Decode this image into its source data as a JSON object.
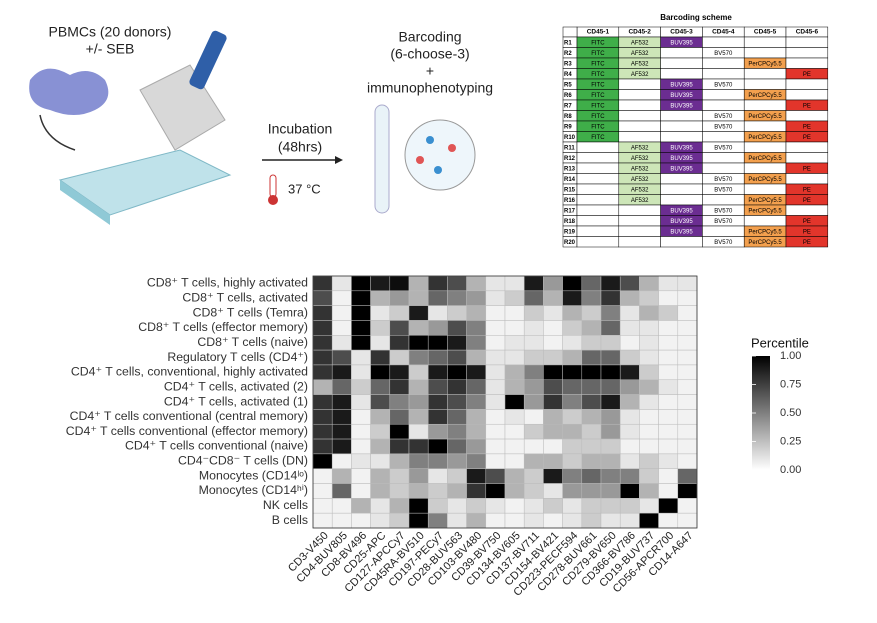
{
  "illustration": {
    "sample": "PBMCs (20 donors)",
    "treatment": "+/- SEB",
    "incubation": "Incubation",
    "duration": "(48hrs)",
    "temperature": "37 °C",
    "step": "Barcoding",
    "step_detail": "(6-choose-3)",
    "plus": "+",
    "step2": "immunophenotyping"
  },
  "table": {
    "title": "Barcoding scheme",
    "columns": [
      "CD45-1",
      "CD45-2",
      "CD45-3",
      "CD45-4",
      "CD45-5",
      "CD45-6"
    ],
    "cell_colors": {
      "FITC": "#3fae49",
      "AF532": "#cde6b8",
      "BUV395": "#6b2d91",
      "BV570": "#ffffff",
      "PerCPCy5.5": "#f3a04e",
      "PE": "#e2352b"
    },
    "rows": [
      [
        "R1",
        "FITC",
        "AF532",
        "BUV395",
        null,
        null,
        null
      ],
      [
        "R2",
        "FITC",
        "AF532",
        null,
        "BV570",
        null,
        null
      ],
      [
        "R3",
        "FITC",
        "AF532",
        null,
        null,
        "PerCPCy5.5",
        null
      ],
      [
        "R4",
        "FITC",
        "AF532",
        null,
        null,
        null,
        "PE"
      ],
      [
        "R5",
        "FITC",
        null,
        "BUV395",
        "BV570",
        null,
        null
      ],
      [
        "R6",
        "FITC",
        null,
        "BUV395",
        null,
        "PerCPCy5.5",
        null
      ],
      [
        "R7",
        "FITC",
        null,
        "BUV395",
        null,
        null,
        "PE"
      ],
      [
        "R8",
        "FITC",
        null,
        null,
        "BV570",
        "PerCPCy5.5",
        null
      ],
      [
        "R9",
        "FITC",
        null,
        null,
        "BV570",
        null,
        "PE"
      ],
      [
        "R10",
        "FITC",
        null,
        null,
        null,
        "PerCPCy5.5",
        "PE"
      ],
      [
        "R11",
        null,
        "AF532",
        "BUV395",
        "BV570",
        null,
        null
      ],
      [
        "R12",
        null,
        "AF532",
        "BUV395",
        null,
        "PerCPCy5.5",
        null
      ],
      [
        "R13",
        null,
        "AF532",
        "BUV395",
        null,
        null,
        "PE"
      ],
      [
        "R14",
        null,
        "AF532",
        null,
        "BV570",
        "PerCPCy5.5",
        null
      ],
      [
        "R15",
        null,
        "AF532",
        null,
        "BV570",
        null,
        "PE"
      ],
      [
        "R16",
        null,
        "AF532",
        null,
        null,
        "PerCPCy5.5",
        "PE"
      ],
      [
        "R17",
        null,
        null,
        "BUV395",
        "BV570",
        "PerCPCy5.5",
        null
      ],
      [
        "R18",
        null,
        null,
        "BUV395",
        "BV570",
        null,
        "PE"
      ],
      [
        "R19",
        null,
        null,
        "BUV395",
        null,
        "PerCPCy5.5",
        "PE"
      ],
      [
        "R20",
        null,
        null,
        null,
        "BV570",
        "PerCPCy5.5",
        "PE"
      ]
    ]
  },
  "chart_data": {
    "type": "heatmap",
    "rows": [
      "CD8⁺ T cells, highly activated",
      "CD8⁺ T cells, activated",
      "CD8⁺ T cells (Temra)",
      "CD8⁺ T cells (effector memory)",
      "CD8⁺ T cells (naive)",
      "Regulatory T cells (CD4⁺)",
      "CD4⁺ T cells, conventional, highly activated",
      "CD4⁺ T cells, activated (2)",
      "CD4⁺ T cells, activated (1)",
      "CD4⁺ T cells conventional (central memory)",
      "CD4⁺ T cells conventional (effector memory)",
      "CD4⁺ T cells conventional (naive)",
      "CD4⁻CD8⁻ T cells (DN)",
      "Monocytes (CD14ˡᵒ)",
      "Monocytes (CD14ʰⁱ)",
      "NK cells",
      "B cells"
    ],
    "categories": [
      "CD3-V450",
      "CD4-BUV805",
      "CD8-BV496",
      "CD25-APC",
      "CD127-APCCy7",
      "CD45RA-BV510",
      "CD197-PECy7",
      "CD28-BUV563",
      "CD103-BV480",
      "CD39-BV750",
      "CD134-BV605",
      "CD137-BV711",
      "CD154-BV421",
      "CD223-PECF594",
      "CD278-BUV661",
      "CD279-BV650",
      "CD366-BV786",
      "CD19-BUV737",
      "CD56-APCR700",
      "CD14-A647"
    ],
    "values": [
      [
        0.8,
        0.1,
        1,
        0.9,
        0.95,
        0.3,
        0.8,
        0.7,
        0.3,
        0.1,
        0.1,
        0.9,
        0.4,
        1,
        0.6,
        0.9,
        0.7,
        0.3,
        0.1,
        0.1
      ],
      [
        0.7,
        0.05,
        1,
        0.3,
        0.4,
        0.3,
        0.6,
        0.5,
        0.4,
        0.1,
        0.2,
        0.6,
        0.3,
        0.9,
        0.5,
        0.8,
        0.3,
        0.2,
        0.05,
        0.05
      ],
      [
        0.8,
        0.05,
        1,
        0.1,
        0.2,
        0.9,
        0.1,
        0.2,
        0.3,
        0.05,
        0.05,
        0.2,
        0.1,
        0.3,
        0.2,
        0.5,
        0.1,
        0.3,
        0.2,
        0.05
      ],
      [
        0.8,
        0.05,
        1,
        0.2,
        0.7,
        0.3,
        0.4,
        0.7,
        0.5,
        0.05,
        0.05,
        0.1,
        0.05,
        0.2,
        0.3,
        0.6,
        0.1,
        0.1,
        0.05,
        0.05
      ],
      [
        0.8,
        0.1,
        1,
        0.1,
        0.8,
        1,
        1,
        0.9,
        0.5,
        0.05,
        0.1,
        0.1,
        0.05,
        0.1,
        0.2,
        0.2,
        0.05,
        0.1,
        0.05,
        0.05
      ],
      [
        0.8,
        0.7,
        0.1,
        0.8,
        0.2,
        0.5,
        0.6,
        0.7,
        0.3,
        0.1,
        0.1,
        0.2,
        0.2,
        0.3,
        0.6,
        0.6,
        0.2,
        0.1,
        0.05,
        0.05
      ],
      [
        0.8,
        0.9,
        0.1,
        1,
        0.9,
        0.2,
        0.9,
        1,
        0.9,
        0.1,
        0.3,
        0.5,
        1,
        1,
        1,
        1,
        0.9,
        0.2,
        0.05,
        0.05
      ],
      [
        0.3,
        0.6,
        0.2,
        0.6,
        0.8,
        0.3,
        0.7,
        0.8,
        0.6,
        0.1,
        0.3,
        0.4,
        0.7,
        0.6,
        0.6,
        0.6,
        0.4,
        0.3,
        0.1,
        0.05
      ],
      [
        0.8,
        0.9,
        0.1,
        0.7,
        0.5,
        0.4,
        0.8,
        0.7,
        0.5,
        0.1,
        1,
        0.4,
        0.8,
        0.5,
        0.7,
        0.9,
        0.3,
        0.1,
        0.05,
        0.05
      ],
      [
        0.8,
        0.9,
        0.05,
        0.3,
        0.6,
        0.3,
        0.8,
        0.6,
        0.3,
        0.05,
        0.1,
        0.05,
        0.3,
        0.2,
        0.3,
        0.4,
        0.1,
        0.05,
        0.05,
        0.05
      ],
      [
        0.8,
        0.9,
        0.05,
        0.2,
        1,
        0.1,
        0.4,
        0.5,
        0.3,
        0.05,
        0.05,
        0.2,
        0.3,
        0.3,
        0.2,
        0.4,
        0.1,
        0.05,
        0.05,
        0.05
      ],
      [
        0.8,
        0.9,
        0.05,
        0.3,
        0.8,
        0.8,
        1,
        0.6,
        0.4,
        0.05,
        0.05,
        0.05,
        0.05,
        0.2,
        0.2,
        0.2,
        0.05,
        0.05,
        0.05,
        0.05
      ],
      [
        1,
        0.05,
        0.1,
        0.1,
        0.3,
        0.5,
        0.5,
        0.4,
        0.5,
        0.05,
        0.05,
        0.3,
        0.3,
        0.2,
        0.3,
        0.3,
        0.1,
        0.2,
        0.1,
        0.05
      ],
      [
        0.05,
        0.3,
        0.05,
        0.3,
        0.2,
        0.4,
        0.1,
        0.2,
        0.9,
        0.7,
        0.3,
        0.2,
        0.9,
        0.5,
        0.6,
        0.5,
        0.5,
        0.2,
        0.05,
        0.6
      ],
      [
        0.05,
        0.6,
        0.05,
        0.3,
        0.2,
        0.3,
        0.2,
        0.3,
        0.8,
        1,
        0.3,
        0.2,
        0.1,
        0.4,
        0.4,
        0.4,
        1,
        0.3,
        0.05,
        1
      ],
      [
        0.05,
        0.05,
        0.3,
        0.1,
        0.3,
        1,
        0.2,
        0.1,
        0.2,
        0.1,
        0.05,
        0.1,
        0.2,
        0.1,
        0.2,
        0.2,
        0.2,
        0.1,
        1,
        0.05
      ],
      [
        0.05,
        0.05,
        0.05,
        0.1,
        0.2,
        1,
        0.5,
        0.1,
        0.3,
        0.05,
        0.05,
        0.1,
        0.05,
        0.1,
        0.2,
        0.1,
        0.1,
        1,
        0.05,
        0.05
      ]
    ],
    "colorbar": {
      "title": "Percentile",
      "lim": [
        0,
        1
      ],
      "colors": [
        "#ffffff",
        "#000000"
      ],
      "ticks": [
        {
          "value": 0,
          "label": "0.00"
        },
        {
          "value": 0.25,
          "label": "0.25"
        },
        {
          "value": 0.5,
          "label": "0.50"
        },
        {
          "value": 0.75,
          "label": "0.75"
        },
        {
          "value": 1,
          "label": "1.00"
        }
      ]
    }
  }
}
